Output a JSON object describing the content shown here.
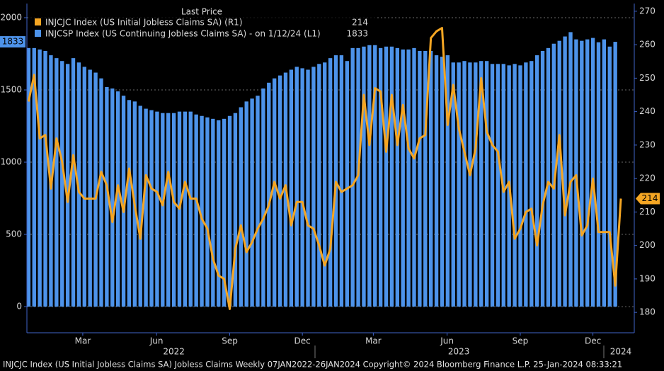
{
  "chart_data": {
    "type": "bar",
    "legend_title": "Last Price",
    "footer": "INJCJC Index (US Initial Jobless Claims SA) Jobless Claims  Weekly 07JAN2022-26JAN2024  Copyright© 2024 Bloomberg Finance L.P.  25-Jan-2024 08:33:21",
    "x": [
      0,
      1,
      2,
      3,
      4,
      5,
      6,
      7,
      8,
      9,
      10,
      11,
      12,
      13,
      14,
      15,
      16,
      17,
      18,
      19,
      20,
      21,
      22,
      23,
      24,
      25,
      26,
      27,
      28,
      29,
      30,
      31,
      32,
      33,
      34,
      35,
      36,
      37,
      38,
      39,
      40,
      41,
      42,
      43,
      44,
      45,
      46,
      47,
      48,
      49,
      50,
      51,
      52,
      53,
      54,
      55,
      56,
      57,
      58,
      59,
      60,
      61,
      62,
      63,
      64,
      65,
      66,
      67,
      68,
      69,
      70,
      71,
      72,
      73,
      74,
      75,
      76,
      77,
      78,
      79,
      80,
      81,
      82,
      83,
      84,
      85,
      86,
      87,
      88,
      89,
      90,
      91,
      92,
      93,
      94,
      95,
      96,
      97,
      98,
      99,
      100,
      101,
      102,
      103,
      104,
      105,
      106
    ],
    "xlim": [
      -0.3,
      108.4
    ],
    "xticks": [
      {
        "value": 9.7,
        "label": "Mar"
      },
      {
        "value": 22.9,
        "label": "Jun"
      },
      {
        "value": 36,
        "label": "Sep"
      },
      {
        "value": 49,
        "label": "Dec"
      },
      {
        "value": 61.7,
        "label": "Mar"
      },
      {
        "value": 74.9,
        "label": "Jun"
      },
      {
        "value": 88,
        "label": "Sep"
      },
      {
        "value": 101,
        "label": "Dec"
      }
    ],
    "year_labels": [
      {
        "value": 26,
        "label": "2022"
      },
      {
        "value": 77,
        "label": "2023"
      },
      {
        "value": 106,
        "label": "2024"
      }
    ],
    "ylim": [
      -181,
      2098
    ],
    "yticks": [
      0,
      500,
      1000,
      1500,
      2000
    ],
    "y2lim": [
      173.9,
      272.3
    ],
    "y2ticks": [
      180,
      190,
      200,
      210,
      220,
      230,
      240,
      250,
      260,
      270
    ],
    "grid": true,
    "series": [
      {
        "name": "INJCSP Index (US Continuing Jobless Claims SA) -  on 1/12/24  (L1)",
        "color": "#4d93ea",
        "type": "bar",
        "values": [
          1790,
          1790,
          1780,
          1770,
          1740,
          1720,
          1700,
          1680,
          1720,
          1690,
          1660,
          1640,
          1620,
          1580,
          1520,
          1510,
          1490,
          1460,
          1430,
          1420,
          1390,
          1370,
          1360,
          1350,
          1340,
          1340,
          1340,
          1350,
          1350,
          1350,
          1330,
          1320,
          1310,
          1300,
          1290,
          1300,
          1320,
          1340,
          1380,
          1420,
          1440,
          1460,
          1510,
          1550,
          1580,
          1600,
          1620,
          1640,
          1660,
          1650,
          1640,
          1660,
          1680,
          1690,
          1720,
          1740,
          1740,
          1700,
          1790,
          1790,
          1800,
          1810,
          1810,
          1790,
          1800,
          1800,
          1790,
          1780,
          1780,
          1790,
          1770,
          1770,
          1770,
          1740,
          1730,
          1740,
          1690,
          1690,
          1700,
          1690,
          1690,
          1700,
          1700,
          1680,
          1680,
          1680,
          1670,
          1680,
          1670,
          1690,
          1700,
          1740,
          1770,
          1790,
          1820,
          1840,
          1870,
          1900,
          1850,
          1840,
          1850,
          1860,
          1830,
          1850,
          1800,
          1833,
          null
        ]
      },
      {
        "name": "INJCJC Index (US Initial Jobless Claims SA)  (R1)",
        "color": "#f5a623",
        "type": "line",
        "axis": "y2",
        "values": [
          243,
          251,
          232,
          233,
          217,
          232,
          225,
          213,
          227,
          216,
          214,
          214,
          214,
          222,
          218,
          207,
          218,
          210,
          223,
          212,
          202,
          221,
          217,
          216,
          212,
          222,
          213,
          211,
          219,
          214,
          214,
          208,
          205,
          196,
          191,
          190,
          181,
          199,
          206,
          198,
          201,
          205,
          208,
          212,
          219,
          214,
          218,
          206,
          213,
          213,
          206,
          205,
          200,
          194,
          199,
          219,
          216,
          217,
          218,
          221,
          245,
          230,
          247,
          246,
          228,
          245,
          230,
          242,
          229,
          226,
          232,
          233,
          262,
          264,
          265,
          236,
          248,
          235,
          228,
          221,
          229,
          250,
          234,
          230,
          228,
          216,
          219,
          202,
          205,
          210,
          211,
          200,
          212,
          219,
          217,
          233,
          209,
          219,
          221,
          203,
          206,
          220,
          204,
          204,
          204,
          188,
          214
        ]
      }
    ]
  }
}
